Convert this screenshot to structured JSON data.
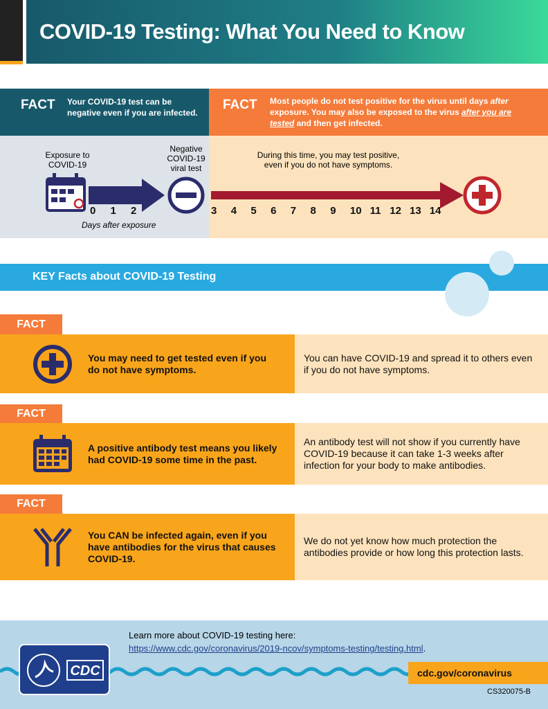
{
  "header": {
    "title": "COVID-19 Testing: What You Need to Know"
  },
  "fact_left": {
    "label": "FACT",
    "text": "Your COVID-19 test can be negative even if you are infected."
  },
  "fact_right": {
    "label": "FACT",
    "text_parts": [
      "Most people do not test positive for the virus until days ",
      "after",
      " exposure. You may also be exposed to the virus ",
      "after you are tested",
      " and then get infected."
    ]
  },
  "timeline": {
    "exposure_label": "Exposure to COVID-19",
    "negative_label": "Negative COVID-19 viral test",
    "positive_note": "During this time, you may test positive, even if you do not have symptoms.",
    "days": [
      0,
      1,
      2,
      3,
      4,
      5,
      6,
      7,
      8,
      9,
      10,
      11,
      12,
      13,
      14
    ],
    "axis_label": "Days after exposure"
  },
  "key_facts": {
    "title": "KEY Facts about COVID-19 Testing",
    "items": [
      {
        "label": "FACT",
        "statement": "You may need to get tested even if you do not have symptoms.",
        "detail": "You can have COVID-19 and spread it to others even if you do not have symptoms."
      },
      {
        "label": "FACT",
        "statement": "A positive antibody test means you likely had COVID-19 some time in the past.",
        "detail": "An antibody test will not show if you currently have COVID-19 because it can take 1-3 weeks after infection for your body to make antibodies."
      },
      {
        "label": "FACT",
        "statement": "You CAN be infected again, even if you have antibodies for the virus that causes COVID-19.",
        "detail": "We do not yet know how much protection the antibodies provide or how long this protection lasts."
      }
    ]
  },
  "footer": {
    "learn_more": "Learn more about COVID-19 testing here:",
    "link": "https://www.cdc.gov/coronavirus/2019-ncov/symptoms-testing/testing.html",
    "link_suffix": ".",
    "logo": "CDC",
    "site": "cdc.gov/coronavirus",
    "code": "CS320075-B"
  }
}
